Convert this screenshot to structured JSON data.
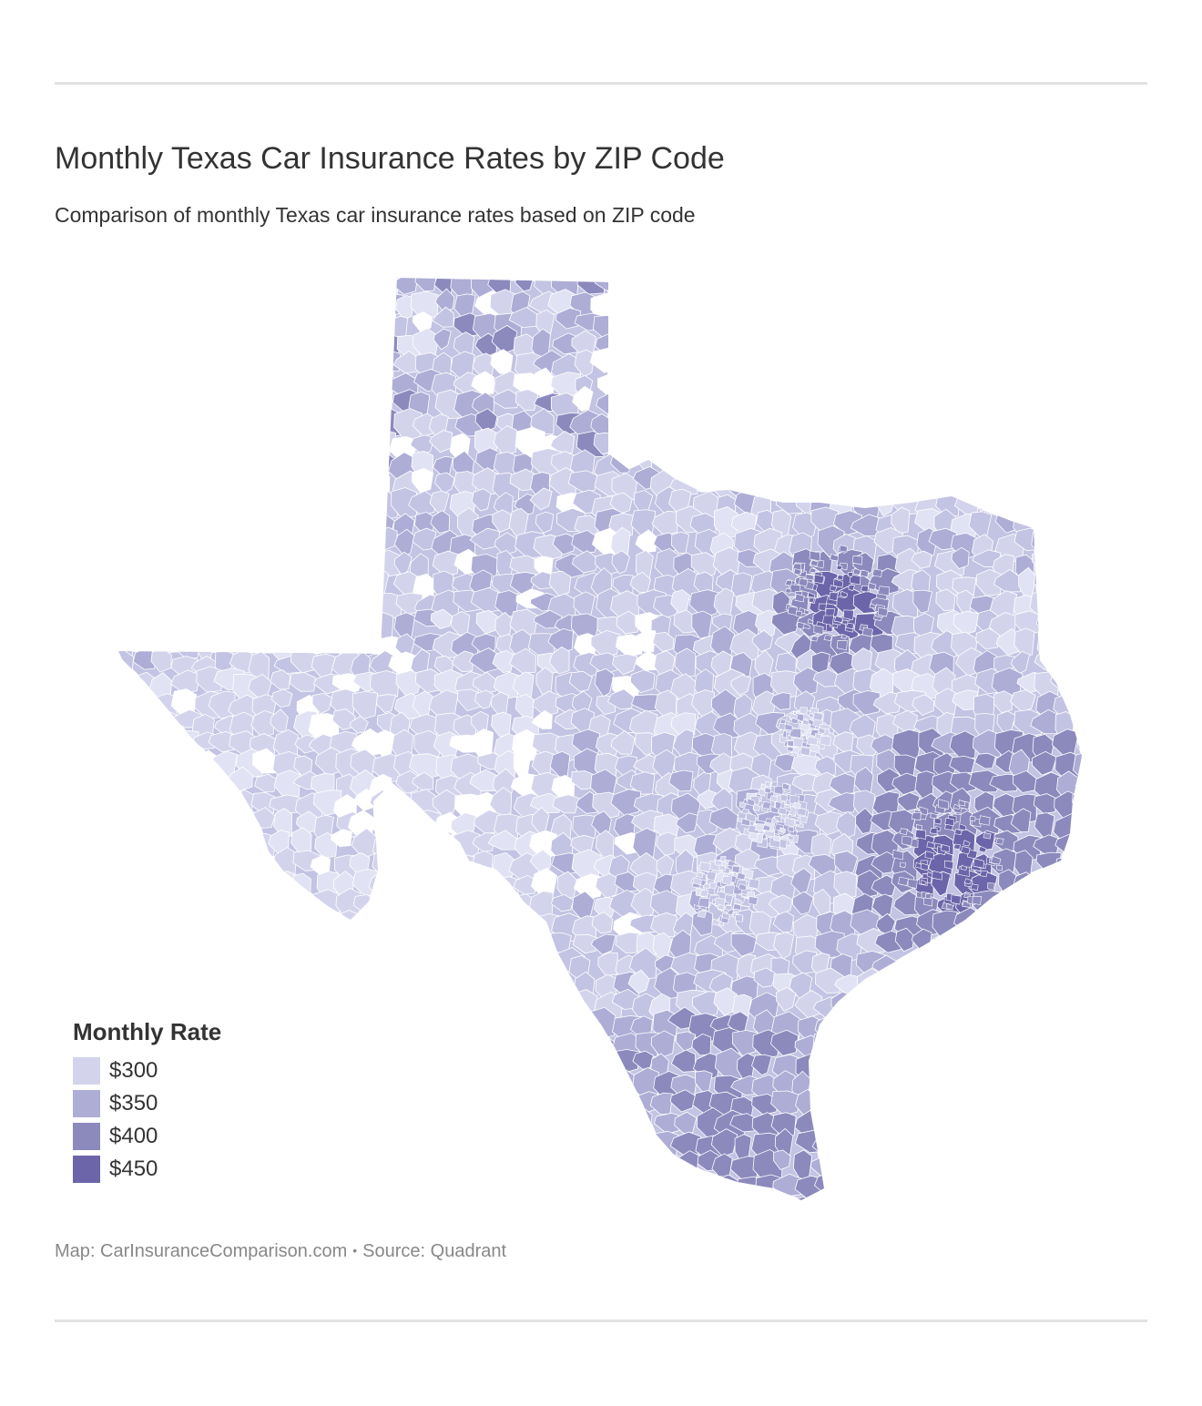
{
  "header": {
    "title": "Monthly Texas Car Insurance Rates by ZIP Code",
    "subtitle": "Comparison of monthly Texas car insurance rates based on ZIP code"
  },
  "legend": {
    "title": "Monthly Rate",
    "items": [
      {
        "label": "$300",
        "color": "#d3d4ec"
      },
      {
        "label": "$350",
        "color": "#adadd6"
      },
      {
        "label": "$400",
        "color": "#8c89bd"
      },
      {
        "label": "$450",
        "color": "#6c65a9"
      }
    ]
  },
  "map": {
    "region": "Texas",
    "level": "ZIP code",
    "base_color": "#c3c3e3",
    "light_color": "#e1e2f3",
    "boundary_color": "#ffffff"
  },
  "footer": {
    "map_credit": "Map: CarInsuranceComparison.com",
    "separator": "•",
    "source": "Source: Quadrant"
  }
}
